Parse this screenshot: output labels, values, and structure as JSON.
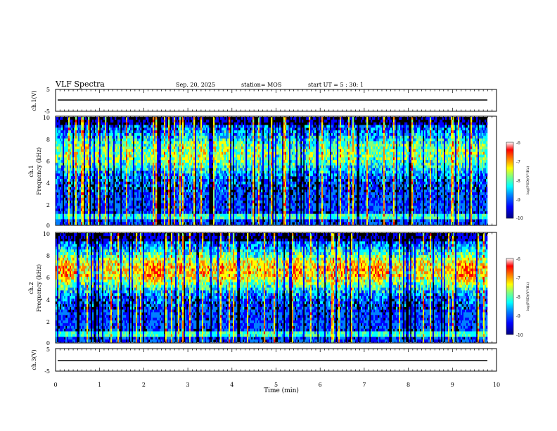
{
  "header": {
    "title": "VLF Spectra",
    "date": "Sep. 20, 2025",
    "station": "station= MOS",
    "start": "start  UT =   5 : 30: 1"
  },
  "colors": {
    "background": "#000000",
    "trace": "#000000",
    "colormap": [
      "#00007f",
      "#0000ff",
      "#0080ff",
      "#00ffff",
      "#80ff80",
      "#ffff00",
      "#ff8000",
      "#ff0000",
      "#ffffff"
    ]
  },
  "chart_data": [
    {
      "type": "line",
      "name": "ch1-waveform",
      "ylabel": "ch.1(V)",
      "ylim": [
        -5,
        5
      ],
      "yticks": [
        "5",
        "-5"
      ],
      "xlim": [
        0,
        10
      ],
      "values_description_level": 0
    },
    {
      "type": "heatmap",
      "name": "ch1-spectrogram",
      "ylabel_line1": "ch.1",
      "ylabel_line2": "Frequency (kHz)",
      "ylim": [
        0,
        10
      ],
      "yticks": [
        "0",
        "2",
        "4",
        "6",
        "8",
        "10"
      ],
      "xlim": [
        0,
        10
      ],
      "colorbar": {
        "label": "log(PSD)(V²/Hz)",
        "range": [
          -10,
          -6
        ],
        "ticks": [
          "-6",
          "-7",
          "-8",
          "-9",
          "-10"
        ]
      }
    },
    {
      "type": "heatmap",
      "name": "ch2-spectrogram",
      "ylabel_line1": "ch.2",
      "ylabel_line2": "Frequency (kHz)",
      "ylim": [
        0,
        10
      ],
      "yticks": [
        "0",
        "2",
        "4",
        "6",
        "8",
        "10"
      ],
      "xlim": [
        0,
        10
      ],
      "colorbar": {
        "label": "log(PSD)(V²/Hz)",
        "range": [
          -10,
          -6
        ],
        "ticks": [
          "-6",
          "-7",
          "-8",
          "-9",
          "-10"
        ]
      }
    },
    {
      "type": "line",
      "name": "ch3-waveform",
      "ylabel": "ch.3(V)",
      "ylim": [
        -5,
        5
      ],
      "yticks": [
        "5",
        "-5"
      ],
      "xlim": [
        0,
        10
      ],
      "xlabel": "Time (min)",
      "xticks": [
        "0",
        "1",
        "2",
        "3",
        "4",
        "5",
        "6",
        "7",
        "8",
        "9",
        "10"
      ]
    }
  ]
}
